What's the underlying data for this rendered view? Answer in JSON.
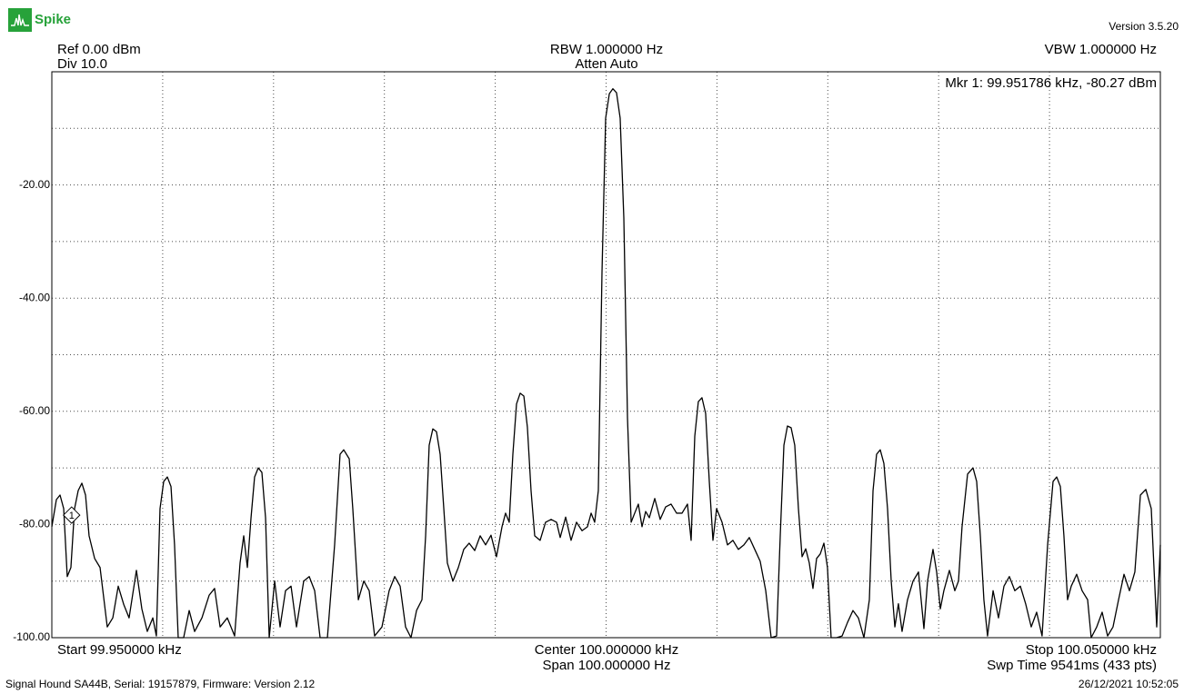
{
  "header": {
    "logo": "Spike",
    "version": "Version 3.5.20",
    "ref": "Ref 0.00 dBm",
    "div": "Div 10.0",
    "rbw": "RBW 1.000000 Hz",
    "atten": "Atten Auto",
    "vbw": "VBW 1.000000 Hz",
    "marker_readout": "Mkr 1: 99.951786 kHz, -80.27 dBm"
  },
  "chart_data": {
    "type": "line",
    "xlim": [
      99.95,
      100.05
    ],
    "ylim": [
      -100,
      0
    ],
    "xgrid": [
      99.95,
      99.96,
      99.97,
      99.98,
      99.99,
      100.0,
      100.01,
      100.02,
      100.03,
      100.04,
      100.05
    ],
    "ygrid": [
      0,
      -10,
      -20,
      -30,
      -40,
      -50,
      -60,
      -70,
      -80,
      -90,
      -100
    ],
    "yticks": [
      {
        "value": -20,
        "label": "-20.00"
      },
      {
        "value": -40,
        "label": "-40.00"
      },
      {
        "value": -60,
        "label": "-60.00"
      },
      {
        "value": -80,
        "label": "-80.00"
      },
      {
        "value": -100,
        "label": "-100.00"
      }
    ],
    "grid": true,
    "x": [
      99.95,
      99.95041,
      99.95074,
      99.95107,
      99.95139,
      99.95172,
      99.95205,
      99.95238,
      99.95271,
      99.95304,
      99.95336,
      99.95386,
      99.95435,
      99.955,
      99.9555,
      99.95599,
      99.95648,
      99.95697,
      99.95763,
      99.95812,
      99.95861,
      99.95911,
      99.95943,
      99.95976,
      99.96009,
      99.96042,
      99.96075,
      99.96107,
      99.9614,
      99.96189,
      99.96239,
      99.96288,
      99.96354,
      99.96419,
      99.96468,
      99.96518,
      99.96583,
      99.96649,
      99.96698,
      99.96731,
      99.96764,
      99.96797,
      99.96829,
      99.96862,
      99.96895,
      99.96928,
      99.96961,
      99.9701,
      99.97059,
      99.97108,
      99.97158,
      99.97207,
      99.97272,
      99.97322,
      99.97371,
      99.9742,
      99.97486,
      99.97551,
      99.976,
      99.97633,
      99.97683,
      99.97715,
      99.97765,
      99.97814,
      99.97863,
      99.97912,
      99.97978,
      99.98043,
      99.98093,
      99.98142,
      99.98191,
      99.9824,
      99.9829,
      99.98339,
      99.98372,
      99.98404,
      99.98437,
      99.9847,
      99.98503,
      99.98536,
      99.98568,
      99.98618,
      99.98667,
      99.98716,
      99.98765,
      99.98815,
      99.98864,
      99.98913,
      99.98962,
      99.99011,
      99.99061,
      99.99093,
      99.99126,
      99.99159,
      99.99192,
      99.99225,
      99.99258,
      99.9929,
      99.99323,
      99.99356,
      99.99405,
      99.99454,
      99.99504,
      99.99553,
      99.99586,
      99.99635,
      99.99684,
      99.99733,
      99.99783,
      99.99832,
      99.99865,
      99.99897,
      99.9993,
      99.99963,
      99.99996,
      100.00029,
      100.00061,
      100.00094,
      100.00127,
      100.0016,
      100.00193,
      100.00226,
      100.00258,
      100.00291,
      100.00324,
      100.00357,
      100.0039,
      100.00439,
      100.00488,
      100.00537,
      100.00586,
      100.00636,
      100.00685,
      100.00734,
      100.00767,
      100.008,
      100.00832,
      100.00865,
      100.00898,
      100.00931,
      100.00964,
      100.00997,
      100.01046,
      100.01095,
      100.01144,
      100.01193,
      100.01243,
      100.01292,
      100.01341,
      100.0139,
      100.0144,
      100.01489,
      100.01538,
      100.01571,
      100.01604,
      100.01636,
      100.01669,
      100.01702,
      100.01735,
      100.01768,
      100.01801,
      100.01833,
      100.01866,
      100.01899,
      100.01932,
      100.01965,
      100.01997,
      100.0203,
      100.02079,
      100.02129,
      100.02178,
      100.02227,
      100.02276,
      100.02326,
      100.02375,
      100.02408,
      100.0244,
      100.02473,
      100.02506,
      100.02539,
      100.02572,
      100.02605,
      100.02637,
      100.0267,
      100.02719,
      100.02769,
      100.02818,
      100.02867,
      100.029,
      100.02949,
      100.02982,
      100.03015,
      100.03047,
      100.03097,
      100.03146,
      100.03179,
      100.03211,
      100.03261,
      100.0331,
      100.03343,
      100.03376,
      100.03408,
      100.03441,
      100.03491,
      100.0354,
      100.03589,
      100.03638,
      100.03687,
      100.03737,
      100.03786,
      100.03835,
      100.03884,
      100.03933,
      100.03983,
      100.04032,
      100.04065,
      100.04098,
      100.0413,
      100.04163,
      100.04196,
      100.04245,
      100.04294,
      100.04344,
      100.04376,
      100.04426,
      100.04475,
      100.04524,
      100.04573,
      100.04623,
      100.04672,
      100.04721,
      100.0477,
      100.0482,
      100.04869,
      100.04918,
      100.04967,
      100.05
    ],
    "series": [
      {
        "color": "#000000",
        "values": [
          -80.4,
          -75.6,
          -74.8,
          -77.2,
          -89.2,
          -87.6,
          -77.2,
          -74,
          -72.7,
          -74.8,
          -82,
          -86,
          -87.6,
          -98.1,
          -96.5,
          -90.9,
          -94.1,
          -96.5,
          -88.1,
          -94.9,
          -98.9,
          -96.5,
          -99.7,
          -77.2,
          -72.4,
          -71.6,
          -73.3,
          -83.6,
          -100,
          -100,
          -95.2,
          -98.9,
          -96.5,
          -92.5,
          -91.3,
          -98.1,
          -96.5,
          -99.7,
          -86.8,
          -82,
          -87.6,
          -78.8,
          -71.6,
          -70,
          -70.8,
          -78.8,
          -100,
          -90,
          -98.1,
          -91.7,
          -90.9,
          -98.1,
          -90,
          -89.2,
          -91.7,
          -100,
          -100,
          -83.6,
          -67.6,
          -66.8,
          -68.4,
          -77.2,
          -93.3,
          -90,
          -91.7,
          -99.7,
          -98.1,
          -91.7,
          -89.2,
          -90.9,
          -98.1,
          -100,
          -95.2,
          -93.3,
          -82,
          -66,
          -63.1,
          -63.6,
          -67.6,
          -77.2,
          -86.8,
          -90,
          -87.6,
          -84.4,
          -83.3,
          -84.6,
          -82,
          -83.6,
          -81.9,
          -85.7,
          -80.4,
          -78,
          -79.6,
          -67.6,
          -58.7,
          -56.8,
          -57.3,
          -62.8,
          -74,
          -82,
          -82.8,
          -79.6,
          -79.1,
          -79.6,
          -82.3,
          -78.7,
          -82.8,
          -79.6,
          -81.1,
          -80.4,
          -78,
          -79.6,
          -74,
          -35.5,
          -8.2,
          -3.9,
          -3,
          -3.7,
          -8.2,
          -25.8,
          -61.2,
          -79.6,
          -78,
          -76.4,
          -80.4,
          -77.7,
          -78.8,
          -75.4,
          -79.1,
          -76.9,
          -76.4,
          -78,
          -78,
          -76.4,
          -82.8,
          -64.4,
          -58.3,
          -57.6,
          -60.4,
          -72.4,
          -82.8,
          -77.2,
          -79.6,
          -83.6,
          -82.8,
          -84.4,
          -83.6,
          -82.3,
          -84.4,
          -86.5,
          -91.7,
          -100,
          -99.7,
          -82,
          -66,
          -62.6,
          -62.9,
          -66,
          -77.2,
          -85.7,
          -84.3,
          -86.8,
          -91.3,
          -86,
          -85.2,
          -83.3,
          -87.6,
          -100,
          -100,
          -99.7,
          -97.3,
          -95.2,
          -96.5,
          -100,
          -93.3,
          -74,
          -67.6,
          -66.8,
          -69.2,
          -77.2,
          -90,
          -98.1,
          -94,
          -98.9,
          -93.3,
          -90,
          -88.4,
          -98.4,
          -90,
          -84.4,
          -88.4,
          -94.9,
          -91.7,
          -88.1,
          -91.7,
          -90,
          -80.4,
          -71.1,
          -70,
          -72.4,
          -82,
          -93.3,
          -99.7,
          -91.7,
          -96.5,
          -90.9,
          -89.2,
          -91.7,
          -90.9,
          -94.1,
          -98.1,
          -95.5,
          -99.7,
          -83.6,
          -72.4,
          -71.6,
          -73.3,
          -82,
          -93.3,
          -90.9,
          -88.8,
          -91.7,
          -93.3,
          -100,
          -98.1,
          -95.5,
          -99.7,
          -98.1,
          -93.3,
          -88.8,
          -91.7,
          -88.4,
          -74.8,
          -73.8,
          -77.2,
          -98.1,
          -83.6
        ]
      }
    ],
    "marker": {
      "label": "1",
      "x": 99.951786,
      "y": -80.27
    }
  },
  "footer": {
    "start": "Start 99.950000 kHz",
    "center": "Center 100.000000 kHz",
    "span": "Span 100.000000 Hz",
    "stop": "Stop 100.050000 kHz",
    "sweep": "Swp Time 9541ms (433 pts)",
    "device": "Signal Hound SA44B, Serial: 19157879, Firmware: Version 2.12",
    "timestamp": "26/12/2021 10:52:05"
  }
}
